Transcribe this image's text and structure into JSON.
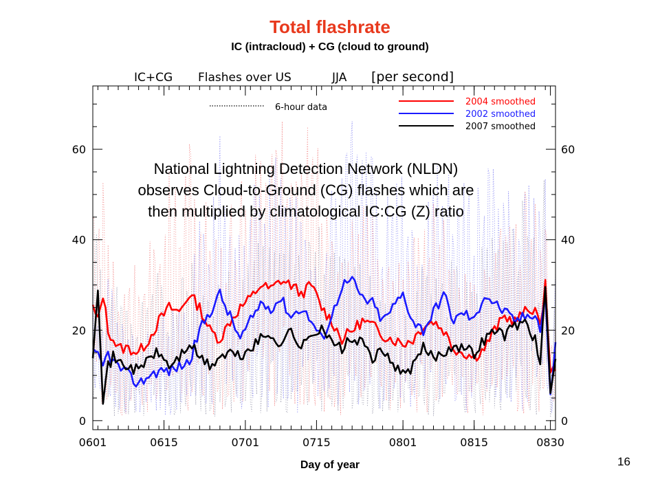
{
  "slide": {
    "title": "Total flashrate",
    "subtitle": "IC (intracloud) + CG (cloud to ground)",
    "xlabel": "Day of year",
    "page_number": "16",
    "annotation": "National Lightning Detection Network (NLDN) observes Cloud-to-Ground (CG) flashes which are then multiplied by climatological IC:CG (Z) ratio"
  },
  "chart_data": {
    "type": "line",
    "plot_title": {
      "part1": "IC+CG",
      "part2": "Flashes over US",
      "part3": "JJA",
      "part4": "[per second]"
    },
    "x_tick_labels": [
      "0601",
      "0615",
      "0701",
      "0715",
      "0801",
      "0815",
      "0830"
    ],
    "x_tick_days": [
      1,
      15,
      31,
      45,
      62,
      76,
      91
    ],
    "xlim": [
      1,
      92
    ],
    "ylim": [
      -2,
      74
    ],
    "y_tick_labels": [
      "0",
      "20",
      "40",
      "60"
    ],
    "y_ticks": [
      0,
      20,
      40,
      60
    ],
    "raw_data_legend": "6-hour data",
    "colors": {
      "2004": "#ff0000",
      "2002": "#1a1aff",
      "2007": "#000000",
      "axis": "#000000"
    },
    "series": [
      {
        "name": "2004 smoothed",
        "year": "2004",
        "color": "#ff0000",
        "x": [
          1,
          2,
          3,
          4,
          5,
          6,
          8,
          10,
          12,
          14,
          16,
          18,
          20,
          22,
          24,
          26,
          28,
          30,
          32,
          34,
          36,
          38,
          40,
          42,
          44,
          46,
          48,
          50,
          52,
          54,
          56,
          58,
          60,
          62,
          64,
          66,
          68,
          70,
          72,
          74,
          76,
          78,
          80,
          82,
          84,
          86,
          88,
          89,
          90,
          91,
          92
        ],
        "values": [
          25,
          22,
          28,
          20,
          18,
          16,
          16,
          15,
          18,
          22,
          25,
          24,
          28,
          25,
          20,
          18,
          22,
          25,
          27,
          30,
          29,
          31,
          30,
          28,
          30,
          25,
          22,
          18,
          20,
          22,
          21,
          19,
          18,
          17,
          18,
          21,
          22,
          20,
          16,
          15,
          14,
          16,
          20,
          23,
          22,
          24,
          25,
          20,
          31,
          10,
          12
        ]
      },
      {
        "name": "2002 smoothed",
        "year": "2002",
        "color": "#1a1aff",
        "x": [
          1,
          2,
          3,
          4,
          5,
          6,
          8,
          10,
          12,
          14,
          16,
          18,
          20,
          22,
          24,
          26,
          28,
          30,
          32,
          34,
          36,
          38,
          40,
          42,
          44,
          46,
          48,
          50,
          52,
          54,
          56,
          58,
          60,
          62,
          64,
          66,
          68,
          70,
          72,
          74,
          76,
          78,
          80,
          82,
          84,
          86,
          88,
          89,
          90,
          91,
          92
        ],
        "values": [
          15,
          14,
          12,
          15,
          13,
          12,
          10,
          8,
          10,
          11,
          11,
          12,
          13,
          20,
          24,
          28,
          23,
          18,
          22,
          26,
          25,
          27,
          23,
          25,
          22,
          18,
          23,
          30,
          31,
          27,
          26,
          22,
          25,
          28,
          22,
          20,
          24,
          28,
          22,
          24,
          22,
          28,
          26,
          24,
          22,
          23,
          24,
          20,
          28,
          5,
          18
        ]
      },
      {
        "name": "2007 smoothed",
        "year": "2007",
        "color": "#000000",
        "x": [
          1,
          2,
          3,
          4,
          5,
          6,
          8,
          10,
          12,
          14,
          16,
          18,
          20,
          22,
          24,
          26,
          28,
          30,
          32,
          34,
          36,
          38,
          40,
          42,
          44,
          46,
          48,
          50,
          52,
          54,
          56,
          58,
          60,
          62,
          64,
          66,
          68,
          70,
          72,
          74,
          76,
          78,
          80,
          82,
          84,
          86,
          88,
          89,
          90,
          91,
          92
        ],
        "values": [
          15,
          30,
          5,
          12,
          14,
          13,
          12,
          11,
          14,
          15,
          12,
          14,
          17,
          14,
          12,
          14,
          15,
          14,
          16,
          18,
          19,
          17,
          20,
          16,
          19,
          21,
          17,
          16,
          18,
          17,
          14,
          15,
          13,
          10,
          12,
          16,
          14,
          15,
          17,
          16,
          15,
          18,
          20,
          19,
          21,
          22,
          18,
          12,
          30,
          5,
          14
        ]
      }
    ]
  }
}
